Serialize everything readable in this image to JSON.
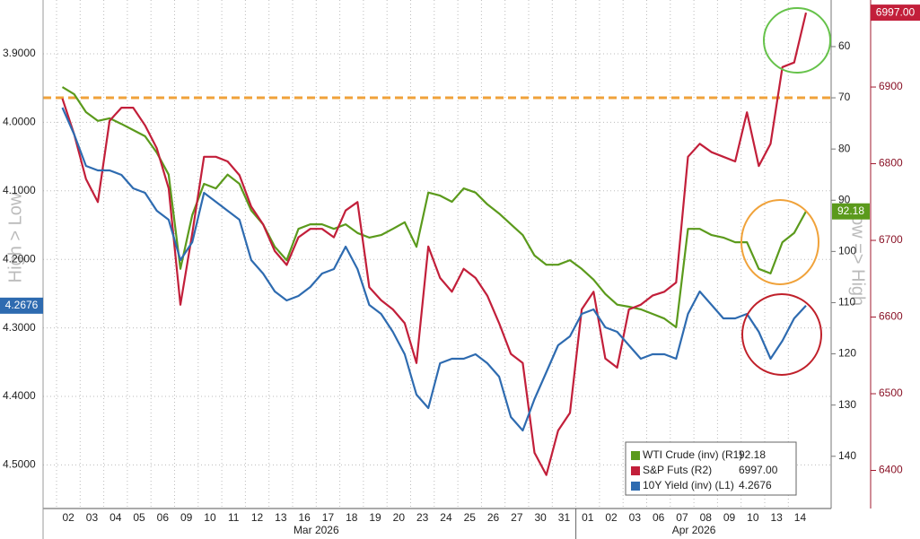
{
  "chart_data": {
    "type": "line",
    "y_label": "High > Low",
    "y2_label": "Low => High",
    "categories": [
      "02",
      null,
      "03",
      null,
      "04",
      null,
      "05",
      null,
      "06",
      null,
      "09",
      null,
      "10",
      null,
      "11",
      null,
      "12",
      null,
      "13",
      null,
      "16",
      null,
      "17",
      null,
      "18",
      null,
      "19",
      null,
      "20",
      null,
      "23",
      null,
      "24",
      null,
      "25",
      null,
      "26",
      null,
      "27",
      null,
      "30",
      null,
      "31",
      null,
      "01",
      null,
      "02",
      null,
      "03",
      null,
      "06",
      null,
      "07",
      null,
      "08",
      null,
      "09",
      null,
      "10",
      null,
      "13",
      null,
      "14",
      null
    ],
    "months": [
      {
        "label": "Mar 2026",
        "from": 0,
        "to": 43
      },
      {
        "label": "Apr 2026",
        "from": 44,
        "to": 63
      }
    ],
    "series": [
      {
        "name": "WTI Crude (inv) (R1)",
        "color": "#5b9a1c",
        "axis": "y2",
        "last_label": "92.18",
        "values": [
          67.9,
          69.3,
          72.8,
          74.5,
          74.0,
          75.1,
          76.3,
          77.5,
          80.7,
          85.0,
          103.4,
          92.9,
          86.8,
          87.7,
          85.0,
          86.8,
          92.0,
          94.7,
          99.1,
          101.7,
          95.6,
          94.7,
          94.7,
          95.6,
          94.7,
          96.4,
          97.3,
          96.8,
          95.6,
          94.3,
          99.1,
          88.5,
          89.1,
          90.3,
          87.7,
          88.5,
          90.8,
          92.6,
          94.7,
          96.8,
          100.8,
          102.6,
          102.6,
          101.7,
          103.4,
          105.5,
          108.3,
          110.4,
          110.8,
          111.3,
          112.2,
          113.1,
          114.8,
          95.6,
          95.6,
          96.8,
          97.3,
          98.2,
          98.2,
          103.4,
          104.3,
          98.2,
          96.4,
          92.18
        ]
      },
      {
        "name": "S&P Futs (R2)",
        "color": "#c21f3a",
        "axis": "y3",
        "last_label": "6997.00",
        "values": [
          6885,
          6838,
          6780,
          6750,
          6856,
          6873,
          6873,
          6850,
          6820,
          6768,
          6616,
          6709,
          6809,
          6809,
          6803,
          6785,
          6744,
          6721,
          6686,
          6668,
          6704,
          6715,
          6715,
          6704,
          6739,
          6750,
          6639,
          6622,
          6610,
          6592,
          6540,
          6692,
          6651,
          6633,
          6663,
          6651,
          6628,
          6592,
          6552,
          6540,
          6423,
          6394,
          6452,
          6475,
          6610,
          6633,
          6546,
          6534,
          6610,
          6616,
          6628,
          6633,
          6645,
          6809,
          6826,
          6815,
          6809,
          6803,
          6867,
          6797,
          6826,
          6926,
          6932,
          6997
        ]
      },
      {
        "name": "10Y Yield (inv) (L1)",
        "color": "#2e6bb0",
        "last_label": "4.2676",
        "values": [
          3.9785,
          4.0178,
          4.0636,
          4.0702,
          4.0702,
          4.0767,
          4.0963,
          4.1029,
          4.1291,
          4.1421,
          4.201,
          4.1749,
          4.1029,
          4.116,
          4.1291,
          4.1421,
          4.201,
          4.2207,
          4.2469,
          4.2599,
          4.2534,
          4.2403,
          4.2207,
          4.2141,
          4.1814,
          4.2141,
          4.2665,
          4.2796,
          4.3058,
          4.3385,
          4.3974,
          4.417,
          4.3516,
          4.345,
          4.345,
          4.3385,
          4.3516,
          4.3712,
          4.4301,
          4.4497,
          4.4039,
          4.3647,
          4.3254,
          4.3123,
          4.2796,
          4.273,
          4.2992,
          4.3058,
          4.3254,
          4.345,
          4.3385,
          4.3385,
          4.345,
          4.2796,
          4.2469,
          4.2665,
          4.2861,
          4.2861,
          4.2796,
          4.3058,
          4.345,
          4.3188,
          4.2861,
          4.2676
        ]
      }
    ],
    "ylim": [
      4.5636,
      3.8215
    ],
    "yticks": [
      {
        "value": 3.9,
        "label": "3.9000"
      },
      {
        "value": 4.0,
        "label": "4.0000"
      },
      {
        "value": 4.1,
        "label": "4.1000"
      },
      {
        "value": 4.2,
        "label": "4.2000"
      },
      {
        "value": 4.3,
        "label": "4.3000"
      },
      {
        "value": 4.4,
        "label": "4.4000"
      },
      {
        "value": 4.5,
        "label": "4.5000"
      }
    ],
    "y2lim": [
      150.2,
      50.9
    ],
    "y2ticks": [
      60,
      70,
      80,
      90,
      100,
      110,
      120,
      130,
      140
    ],
    "y3lim": [
      6350.3,
      7013.5
    ],
    "y3ticks": [
      6400,
      6500,
      6600,
      6700,
      6800,
      6900
    ],
    "reference_line": {
      "value": 70,
      "axis": "y2",
      "color": "#f0a23a"
    },
    "grid": true,
    "legend": "lower right"
  }
}
